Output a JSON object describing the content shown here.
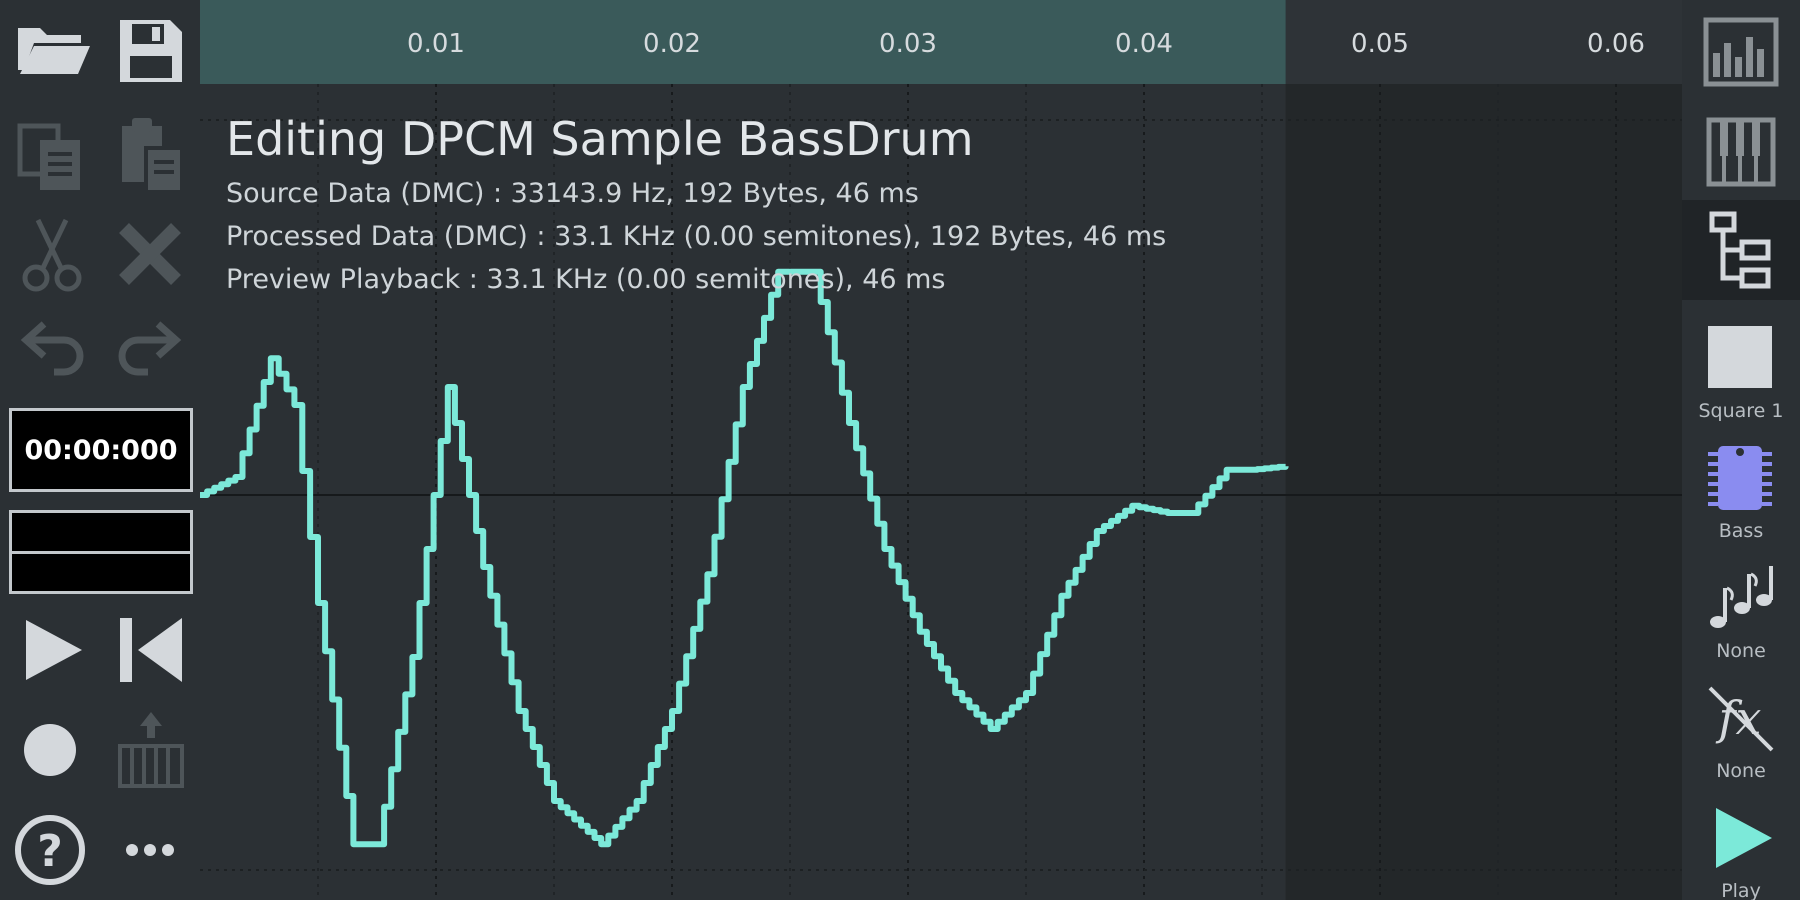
{
  "toolbar": {
    "time_display": "00:00:000",
    "icons": [
      "open-folder-icon",
      "save-icon",
      "copy-icon",
      "paste-icon",
      "cut-icon",
      "delete-icon",
      "undo-icon",
      "redo-icon",
      "play-icon",
      "rewind-icon",
      "record-icon",
      "piano-input-icon",
      "help-icon",
      "more-icon"
    ]
  },
  "timeline": {
    "ticks": [
      "0.01",
      "0.02",
      "0.03",
      "0.04",
      "0.05",
      "0.06"
    ],
    "highlight_end": 0.046,
    "colors": {
      "highlight": "#3a5a5a",
      "ruler": "#2e3337",
      "waveform": "#7ce9d9",
      "background": "#2b3034",
      "outside": "#232729"
    }
  },
  "editor": {
    "title": "Editing DPCM Sample BassDrum",
    "source_info": "Source Data (DMC) : 33143.9 Hz, 192 Bytes, 46 ms",
    "processed_info": "Processed Data (DMC) : 33.1 KHz (0.00 semitones), 192 Bytes, 46 ms",
    "preview_info": "Preview Playback : 33.1 KHz (0.00 semitones), 46 ms"
  },
  "right_panel": {
    "tabs": [
      "sequencer-icon",
      "piano-roll-icon",
      "project-explorer-icon"
    ],
    "channel_label": "Square 1",
    "instrument_label": "Bass",
    "arpeggio_label": "None",
    "effect_label": "None",
    "play_label": "Play"
  },
  "waveform": {
    "time_seconds": [
      0,
      0.0015,
      0.003,
      0.004,
      0.005,
      0.0065,
      0.0075,
      0.009,
      0.0105,
      0.012,
      0.0135,
      0.015,
      0.017,
      0.0185,
      0.02,
      0.0215,
      0.023,
      0.0245,
      0.026,
      0.0275,
      0.029,
      0.0305,
      0.032,
      0.0335,
      0.035,
      0.0365,
      0.038,
      0.0395,
      0.041,
      0.042,
      0.0435,
      0.0445,
      0.046
    ],
    "amplitude": [
      0.0,
      0.05,
      0.38,
      0.25,
      -0.3,
      -0.97,
      -0.97,
      -0.45,
      0.3,
      -0.2,
      -0.6,
      -0.85,
      -0.97,
      -0.85,
      -0.6,
      -0.22,
      0.3,
      0.62,
      0.62,
      0.2,
      -0.15,
      -0.38,
      -0.55,
      -0.65,
      -0.55,
      -0.28,
      -0.1,
      -0.03,
      -0.05,
      -0.05,
      0.07,
      0.07,
      0.08
    ]
  }
}
